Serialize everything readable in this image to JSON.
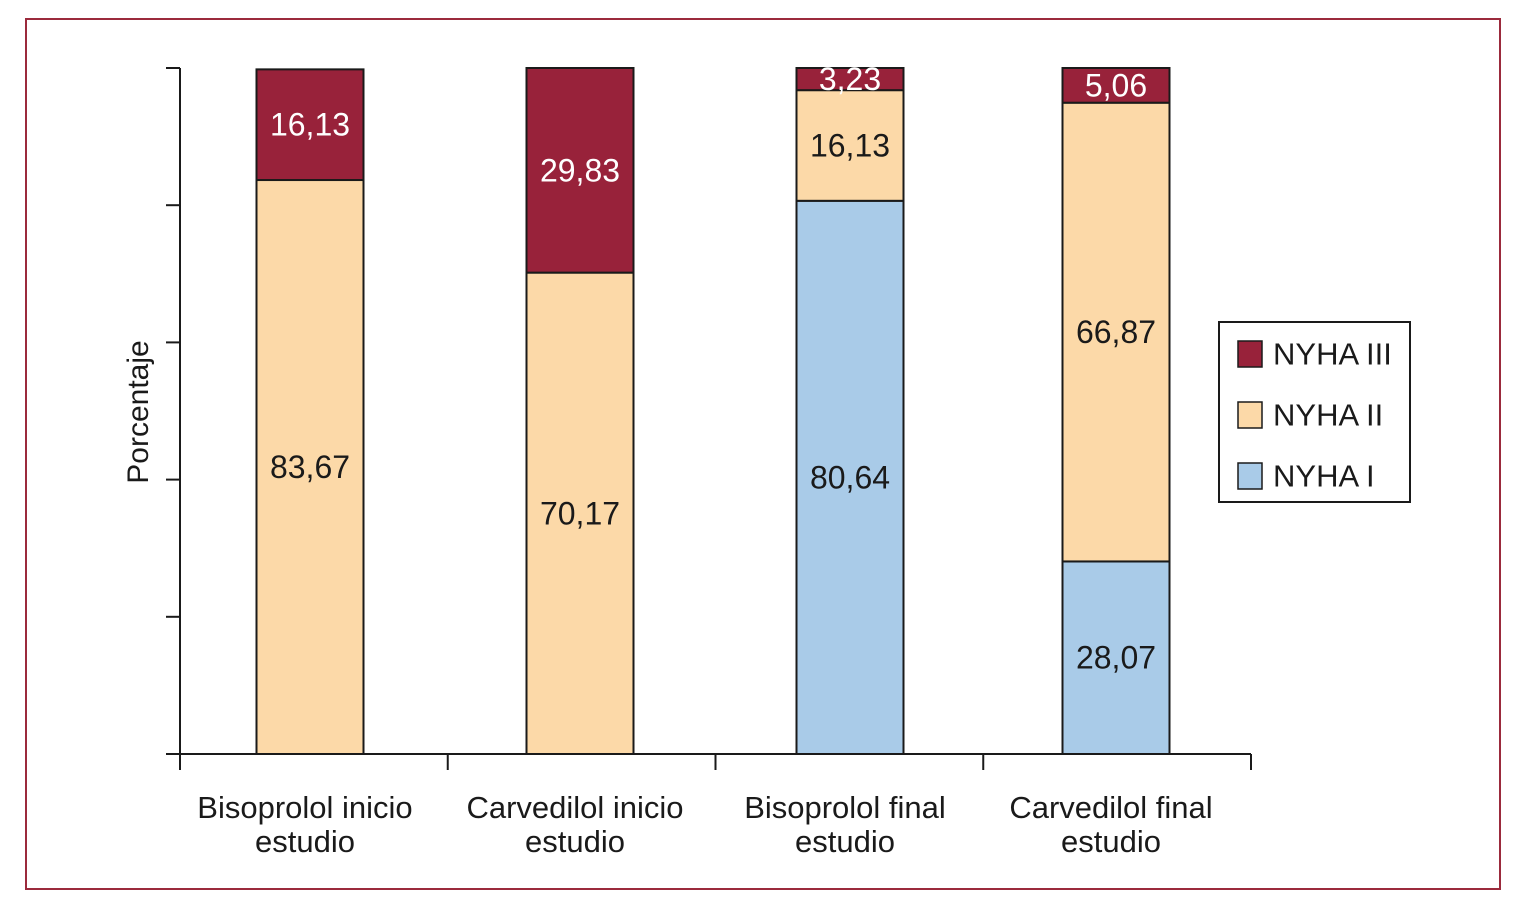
{
  "chart_data": {
    "type": "bar",
    "stacked": true,
    "ylabel": "Porcentaje",
    "ylim": [
      0,
      100
    ],
    "categories": [
      [
        "Bisoprolol inicio",
        "estudio"
      ],
      [
        "Carvedilol inicio",
        "estudio"
      ],
      [
        "Bisoprolol final",
        "estudio"
      ],
      [
        "Carvedilol final",
        "estudio"
      ]
    ],
    "series": [
      {
        "name": "NYHA I",
        "color": "#a9cbe8",
        "values": [
          0,
          0,
          80.64,
          28.07
        ],
        "labels": [
          "",
          "",
          "80,64",
          "28,07"
        ],
        "label_color": "#1a1a1a"
      },
      {
        "name": "NYHA II",
        "color": "#fcd9a8",
        "values": [
          83.67,
          70.17,
          16.13,
          66.87
        ],
        "labels": [
          "83,67",
          "70,17",
          "16,13",
          "66,87"
        ],
        "label_color": "#1a1a1a"
      },
      {
        "name": "NYHA III",
        "color": "#98223a",
        "values": [
          16.13,
          29.83,
          3.23,
          5.06
        ],
        "labels": [
          "16,13",
          "29,83",
          "3,23",
          "5,06"
        ],
        "label_color": "#ffffff"
      }
    ],
    "legend": {
      "position": "right",
      "order": [
        "NYHA III",
        "NYHA II",
        "NYHA I"
      ]
    },
    "grid": false
  }
}
